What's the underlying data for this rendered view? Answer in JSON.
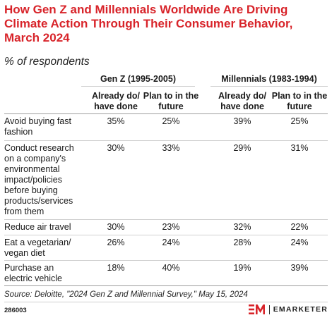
{
  "chart_data": {
    "type": "table",
    "title": "How Gen Z and Millennials Worldwide Are Driving Climate Action Through Their Consumer Behavior, March 2024",
    "subtitle": "% of respondents",
    "groups": [
      {
        "name": "Gen Z (1995-2005)",
        "columns": [
          "Already do/ have done",
          "Plan to in the future"
        ]
      },
      {
        "name": "Millennials (1983-1994)",
        "columns": [
          "Already do/ have done",
          "Plan to in the future"
        ]
      }
    ],
    "rows": [
      {
        "label": "Avoid buying fast fashion",
        "values": [
          "35%",
          "25%",
          "39%",
          "25%"
        ]
      },
      {
        "label": "Conduct research on a company's environmental impact/policies before buying products/services from them",
        "values": [
          "30%",
          "33%",
          "29%",
          "31%"
        ]
      },
      {
        "label": "Reduce air travel",
        "values": [
          "30%",
          "23%",
          "32%",
          "22%"
        ]
      },
      {
        "label": "Eat a vegetarian/ vegan diet",
        "values": [
          "26%",
          "24%",
          "28%",
          "24%"
        ]
      },
      {
        "label": "Purchase an electric vehicle",
        "values": [
          "18%",
          "40%",
          "19%",
          "39%"
        ]
      }
    ],
    "source": "Source: Deloitte, \"2024 Gen Z and Millennial Survey,\" May 15, 2024",
    "chart_id": "286003",
    "brand": "EMARKETER"
  },
  "colors": {
    "title": "#d8242a",
    "brand_mark": "#d8242a"
  },
  "icons": {
    "brand_mark": "emarketer-logo-icon"
  }
}
